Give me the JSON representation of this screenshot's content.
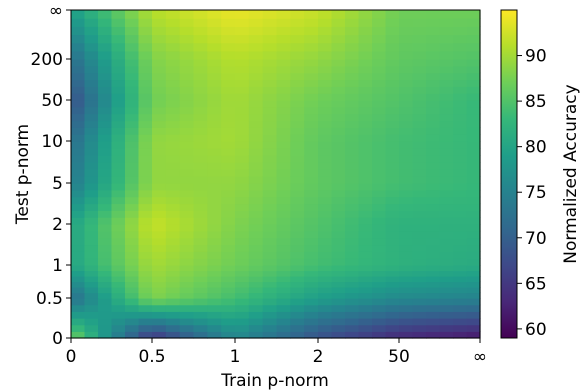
{
  "chart_data": {
    "type": "heatmap",
    "xlabel": "Train p-norm",
    "ylabel": "Test p-norm",
    "colorbar_label": "Normalized Accuracy",
    "colormap": "viridis",
    "x_ticks": [
      "0",
      "0.5",
      "1",
      "2",
      "50",
      "∞"
    ],
    "y_ticks": [
      "0",
      "0.5",
      "1",
      "2",
      "5",
      "10",
      "50",
      "200",
      "∞"
    ],
    "colorbar_ticks": [
      60,
      65,
      70,
      75,
      80,
      85,
      90
    ],
    "colorbar_range": [
      59,
      95
    ],
    "values": [
      [
        88,
        64,
        76,
        68,
        63,
        61
      ],
      [
        72,
        88,
        84,
        79,
        76,
        75
      ],
      [
        80,
        90,
        87,
        84,
        82,
        81
      ],
      [
        80,
        92,
        88,
        85,
        82,
        82
      ],
      [
        74,
        89,
        89,
        86,
        84,
        83
      ],
      [
        72,
        89,
        90,
        86,
        84,
        83
      ],
      [
        68,
        87,
        90,
        87,
        85,
        83
      ],
      [
        72,
        88,
        91,
        89,
        86,
        85
      ],
      [
        79,
        91,
        94,
        92,
        87,
        87
      ]
    ]
  }
}
